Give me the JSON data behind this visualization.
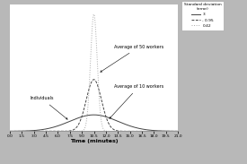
{
  "xlabel": "Time (minutes)",
  "mean": 10.5,
  "sd_individuals": 3,
  "sd_10workers": 0.95,
  "sd_50workers": 0.42,
  "xmin": 0.0,
  "xmax": 21.0,
  "xticks": [
    0.0,
    1.5,
    3.0,
    4.5,
    6.0,
    7.5,
    9.0,
    10.5,
    12.0,
    13.5,
    15.0,
    16.5,
    18.0,
    19.5,
    21.0
  ],
  "legend_title": "Standard deviation\n(error)",
  "line_individuals_color": "#444444",
  "line_10workers_color": "#444444",
  "line_50workers_color": "#aaaaaa",
  "bg_color": "#b8b8b8",
  "plot_bg_color": "#ffffff",
  "annotation_individuals": "Individuals",
  "annotation_10workers": "Average of 10 workers",
  "annotation_50workers": "Average of 50 workers",
  "figsize": [
    2.75,
    1.83
  ],
  "dpi": 100
}
